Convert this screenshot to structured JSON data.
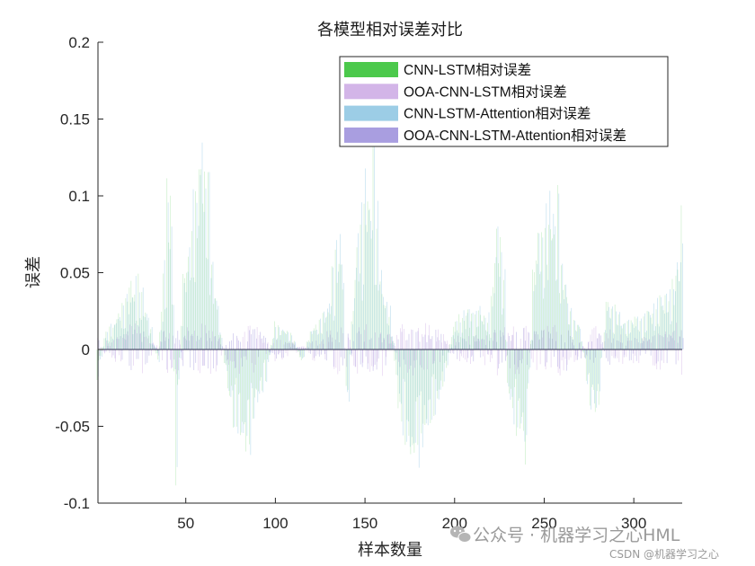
{
  "chart_data": {
    "type": "bar",
    "title": "各模型相对误差对比",
    "xlabel": "样本数量",
    "ylabel": "误差",
    "xlim": [
      1,
      327
    ],
    "ylim": [
      -0.1,
      0.2
    ],
    "xticks": [
      50,
      100,
      150,
      200,
      250,
      300
    ],
    "yticks": [
      -0.1,
      -0.05,
      0,
      0.05,
      0.1,
      0.15,
      0.2
    ],
    "ytick_labels": [
      "-0.1",
      "-0.05",
      "0",
      "0.05",
      "0.1",
      "0.15",
      "0.2"
    ],
    "grid": false,
    "legend_position": "top-right",
    "n_samples": 327,
    "series": [
      {
        "name": "CNN-LSTM相对误差",
        "color": "#4cc94c"
      },
      {
        "name": "OOA-CNN-LSTM相对误差",
        "color": "#d3b5e8"
      },
      {
        "name": "CNN-LSTM-Attention相对误差",
        "color": "#9ccde6"
      },
      {
        "name": "OOA-CNN-LSTM-Attention相对误差",
        "color": "#a99ee0"
      }
    ],
    "envelope_peaks": {
      "x": [
        1,
        5,
        10,
        15,
        20,
        25,
        30,
        35,
        38,
        40,
        42,
        45,
        48,
        50,
        53,
        55,
        58,
        60,
        62,
        65,
        70,
        75,
        80,
        85,
        90,
        95,
        100,
        105,
        110,
        115,
        120,
        125,
        130,
        133,
        135,
        138,
        140,
        145,
        150,
        153,
        155,
        158,
        160,
        165,
        170,
        175,
        178,
        180,
        185,
        190,
        195,
        200,
        205,
        210,
        215,
        220,
        225,
        228,
        230,
        235,
        240,
        245,
        250,
        253,
        255,
        258,
        260,
        265,
        270,
        275,
        280,
        285,
        290,
        295,
        300,
        305,
        310,
        315,
        320,
        325,
        327
      ],
      "y": [
        -0.02,
        0.01,
        0.02,
        0.035,
        0.05,
        0.045,
        0.02,
        -0.01,
        0.06,
        0.11,
        0.115,
        -0.09,
        0.035,
        0.06,
        0.085,
        0.115,
        0.14,
        0.152,
        0.13,
        0.06,
        0.01,
        -0.04,
        -0.065,
        -0.07,
        -0.04,
        -0.02,
        0.02,
        0.015,
        0.01,
        -0.01,
        0.015,
        0.02,
        0.035,
        0.06,
        0.095,
        0.06,
        -0.06,
        0.07,
        0.11,
        0.13,
        0.14,
        0.075,
        0.05,
        0.02,
        -0.055,
        -0.08,
        -0.082,
        -0.075,
        -0.06,
        -0.04,
        -0.02,
        0.02,
        0.025,
        0.03,
        0.03,
        0.02,
        0.1,
        0.05,
        -0.03,
        -0.06,
        -0.075,
        0.08,
        0.1,
        0.108,
        0.11,
        0.098,
        0.07,
        0.025,
        0.02,
        -0.035,
        -0.05,
        0.035,
        0.03,
        0.02,
        0.025,
        0.02,
        0.03,
        0.035,
        0.04,
        0.07,
        0.09
      ]
    }
  },
  "watermark": {
    "text": "公众号 · 机器学习之心HML",
    "csdn": "CSDN @机器学习之心"
  }
}
